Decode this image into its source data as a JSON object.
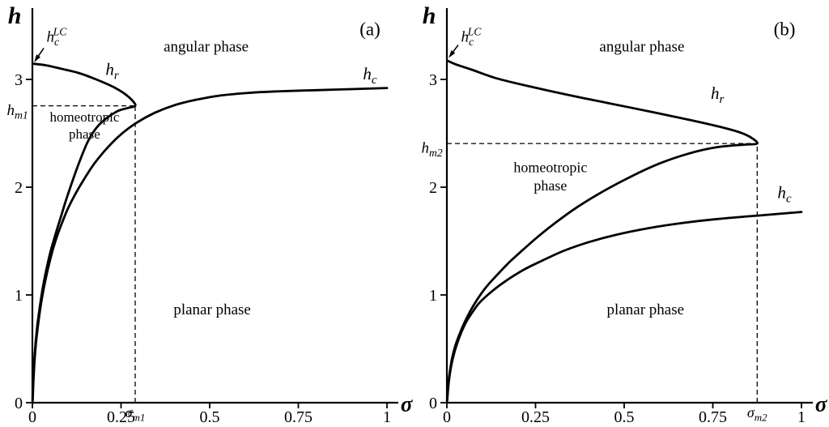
{
  "figure": {
    "background": "#ffffff",
    "ink": "#000000"
  },
  "chart_data": [
    {
      "type": "line",
      "panel": "a",
      "xlabel": "σ",
      "ylabel": "h",
      "xlim": [
        0,
        1
      ],
      "ylim": [
        0,
        3.5
      ],
      "xticks": [
        0,
        0.25,
        0.5,
        0.75,
        1
      ],
      "xtick_labels": [
        "0",
        "0.25",
        "0.5",
        "0.75",
        "1"
      ],
      "yticks": [
        0,
        1,
        2,
        3
      ],
      "ytick_labels": [
        "0",
        "1",
        "2",
        "3"
      ],
      "guides": {
        "sigma_m": 0.29,
        "h_m": 2.755
      },
      "arrow": {
        "x1": 0.032,
        "y1": 3.29,
        "x2": 0.005,
        "y2": 3.16
      },
      "series": [
        {
          "name": "h_c",
          "points": [
            [
              0.001,
              0.02
            ],
            [
              0.003,
              0.2
            ],
            [
              0.006,
              0.38
            ],
            [
              0.01,
              0.55
            ],
            [
              0.016,
              0.72
            ],
            [
              0.023,
              0.89
            ],
            [
              0.032,
              1.06
            ],
            [
              0.043,
              1.23
            ],
            [
              0.056,
              1.4
            ],
            [
              0.07,
              1.55
            ],
            [
              0.085,
              1.68
            ],
            [
              0.1,
              1.8
            ],
            [
              0.12,
              1.93
            ],
            [
              0.145,
              2.07
            ],
            [
              0.175,
              2.22
            ],
            [
              0.21,
              2.36
            ],
            [
              0.25,
              2.49
            ],
            [
              0.295,
              2.6
            ],
            [
              0.345,
              2.69
            ],
            [
              0.4,
              2.76
            ],
            [
              0.46,
              2.81
            ],
            [
              0.53,
              2.85
            ],
            [
              0.61,
              2.875
            ],
            [
              0.7,
              2.89
            ],
            [
              0.8,
              2.9
            ],
            [
              0.9,
              2.91
            ],
            [
              1.0,
              2.92
            ]
          ]
        },
        {
          "name": "h_r",
          "points": [
            [
              0.0005,
              0.02
            ],
            [
              0.002,
              0.2
            ],
            [
              0.005,
              0.38
            ],
            [
              0.009,
              0.55
            ],
            [
              0.014,
              0.72
            ],
            [
              0.021,
              0.89
            ],
            [
              0.029,
              1.06
            ],
            [
              0.039,
              1.23
            ],
            [
              0.051,
              1.4
            ],
            [
              0.064,
              1.55
            ],
            [
              0.078,
              1.7
            ],
            [
              0.092,
              1.85
            ],
            [
              0.107,
              2.0
            ],
            [
              0.122,
              2.14
            ],
            [
              0.138,
              2.28
            ],
            [
              0.156,
              2.42
            ],
            [
              0.178,
              2.54
            ],
            [
              0.205,
              2.63
            ],
            [
              0.24,
              2.705
            ],
            [
              0.27,
              2.735
            ],
            [
              0.29,
              2.755
            ],
            [
              0.283,
              2.8
            ],
            [
              0.263,
              2.86
            ],
            [
              0.228,
              2.93
            ],
            [
              0.18,
              3.0
            ],
            [
              0.13,
              3.06
            ],
            [
              0.08,
              3.1
            ],
            [
              0.04,
              3.13
            ],
            [
              0.004,
              3.145
            ]
          ]
        }
      ],
      "labels": [
        {
          "name": "y-axis-title",
          "parts": [
            {
              "t": "h",
              "it": true
            }
          ],
          "x": -0.05,
          "y": 3.52,
          "size": 30,
          "anchor": "middle",
          "bold": true
        },
        {
          "name": "x-axis-title",
          "parts": [
            {
              "t": "σ",
              "it": true
            }
          ],
          "x": 1.055,
          "y": -0.08,
          "size": 27,
          "anchor": "middle",
          "bold": true
        },
        {
          "name": "panel-letter",
          "text": "(a)",
          "x": 0.952,
          "y": 3.41,
          "size": 23,
          "anchor": "middle"
        },
        {
          "name": "hc-lc-label",
          "parts": [
            {
              "t": "h",
              "it": true
            },
            {
              "t": "c",
              "pos": "sub",
              "it": true
            },
            {
              "t": "LC",
              "pos": "sup",
              "it": true
            }
          ],
          "x": 0.04,
          "y": 3.35,
          "size": 19,
          "anchor": "start"
        },
        {
          "name": "hr-label",
          "parts": [
            {
              "t": "h",
              "it": true
            },
            {
              "t": "r",
              "pos": "sub",
              "it": true
            }
          ],
          "x": 0.225,
          "y": 3.04,
          "size": 21,
          "anchor": "middle"
        },
        {
          "name": "hc-label",
          "parts": [
            {
              "t": "h",
              "it": true
            },
            {
              "t": "c",
              "pos": "sub",
              "it": true
            }
          ],
          "x": 0.952,
          "y": 3.0,
          "size": 21,
          "anchor": "middle"
        },
        {
          "name": "angular-phase-label",
          "text": "angular phase",
          "x": 0.49,
          "y": 3.26,
          "size": 19,
          "anchor": "middle"
        },
        {
          "name": "hm1-label",
          "parts": [
            {
              "t": "h",
              "it": true
            },
            {
              "t": "m1",
              "pos": "sub",
              "it": true
            }
          ],
          "x": -0.012,
          "y": 2.67,
          "size": 19,
          "anchor": "end"
        },
        {
          "name": "homeotropic-phase-line1",
          "text": "homeotropic",
          "x": 0.147,
          "y": 2.61,
          "size": 17,
          "anchor": "middle"
        },
        {
          "name": "homeotropic-phase-line2",
          "text": "phase",
          "x": 0.147,
          "y": 2.45,
          "size": 17,
          "anchor": "middle"
        },
        {
          "name": "planar-phase-label",
          "text": "planar phase",
          "x": 0.507,
          "y": 0.82,
          "size": 19,
          "anchor": "middle"
        },
        {
          "name": "sigma-m1-label",
          "parts": [
            {
              "t": "σ",
              "it": true
            },
            {
              "t": "m1",
              "pos": "sub",
              "it": true
            }
          ],
          "x": 0.29,
          "y": -0.135,
          "size": 18,
          "anchor": "middle"
        }
      ]
    },
    {
      "type": "line",
      "panel": "b",
      "xlabel": "σ",
      "ylabel": "h",
      "xlim": [
        0,
        1
      ],
      "ylim": [
        0,
        3.5
      ],
      "xticks": [
        0,
        0.25,
        0.5,
        0.75,
        1
      ],
      "xtick_labels": [
        "0",
        "0.25",
        "0.5",
        "0.75",
        "1"
      ],
      "yticks": [
        0,
        1,
        2,
        3
      ],
      "ytick_labels": [
        "0",
        "1",
        "2",
        "3"
      ],
      "guides": {
        "sigma_m": 0.875,
        "h_m": 2.405
      },
      "arrow": {
        "x1": 0.032,
        "y1": 3.32,
        "x2": 0.005,
        "y2": 3.2
      },
      "series": [
        {
          "name": "h_c",
          "points": [
            [
              0.001,
              0.02
            ],
            [
              0.004,
              0.15
            ],
            [
              0.009,
              0.28
            ],
            [
              0.016,
              0.4
            ],
            [
              0.026,
              0.52
            ],
            [
              0.038,
              0.63
            ],
            [
              0.053,
              0.74
            ],
            [
              0.07,
              0.83
            ],
            [
              0.09,
              0.92
            ],
            [
              0.115,
              1.0
            ],
            [
              0.145,
              1.08
            ],
            [
              0.18,
              1.16
            ],
            [
              0.22,
              1.24
            ],
            [
              0.27,
              1.32
            ],
            [
              0.33,
              1.41
            ],
            [
              0.4,
              1.49
            ],
            [
              0.48,
              1.56
            ],
            [
              0.57,
              1.62
            ],
            [
              0.67,
              1.67
            ],
            [
              0.78,
              1.71
            ],
            [
              0.89,
              1.74
            ],
            [
              1.0,
              1.77
            ]
          ]
        },
        {
          "name": "h_r",
          "points": [
            [
              0.0005,
              0.02
            ],
            [
              0.003,
              0.15
            ],
            [
              0.008,
              0.28
            ],
            [
              0.014,
              0.4
            ],
            [
              0.023,
              0.52
            ],
            [
              0.035,
              0.63
            ],
            [
              0.049,
              0.74
            ],
            [
              0.066,
              0.85
            ],
            [
              0.086,
              0.96
            ],
            [
              0.11,
              1.07
            ],
            [
              0.14,
              1.18
            ],
            [
              0.175,
              1.3
            ],
            [
              0.215,
              1.42
            ],
            [
              0.26,
              1.55
            ],
            [
              0.31,
              1.68
            ],
            [
              0.37,
              1.82
            ],
            [
              0.44,
              1.96
            ],
            [
              0.52,
              2.1
            ],
            [
              0.6,
              2.22
            ],
            [
              0.68,
              2.31
            ],
            [
              0.76,
              2.37
            ],
            [
              0.84,
              2.395
            ],
            [
              0.875,
              2.405
            ],
            [
              0.858,
              2.46
            ],
            [
              0.825,
              2.51
            ],
            [
              0.77,
              2.56
            ],
            [
              0.69,
              2.62
            ],
            [
              0.59,
              2.69
            ],
            [
              0.47,
              2.77
            ],
            [
              0.35,
              2.85
            ],
            [
              0.24,
              2.93
            ],
            [
              0.14,
              3.01
            ],
            [
              0.07,
              3.09
            ],
            [
              0.025,
              3.14
            ],
            [
              0.004,
              3.17
            ]
          ]
        }
      ],
      "labels": [
        {
          "name": "y-axis-title",
          "parts": [
            {
              "t": "h",
              "it": true
            }
          ],
          "x": -0.05,
          "y": 3.52,
          "size": 30,
          "anchor": "middle",
          "bold": true
        },
        {
          "name": "x-axis-title",
          "parts": [
            {
              "t": "σ",
              "it": true
            }
          ],
          "x": 1.055,
          "y": -0.08,
          "size": 27,
          "anchor": "middle",
          "bold": true
        },
        {
          "name": "panel-letter",
          "text": "(b)",
          "x": 0.952,
          "y": 3.41,
          "size": 23,
          "anchor": "middle"
        },
        {
          "name": "hc-lc-label",
          "parts": [
            {
              "t": "h",
              "it": true
            },
            {
              "t": "c",
              "pos": "sub",
              "it": true
            },
            {
              "t": "LC",
              "pos": "sup",
              "it": true
            }
          ],
          "x": 0.04,
          "y": 3.35,
          "size": 19,
          "anchor": "start"
        },
        {
          "name": "hr-label",
          "parts": [
            {
              "t": "h",
              "it": true
            },
            {
              "t": "r",
              "pos": "sub",
              "it": true
            }
          ],
          "x": 0.763,
          "y": 2.82,
          "size": 21,
          "anchor": "middle"
        },
        {
          "name": "hc-label",
          "parts": [
            {
              "t": "h",
              "it": true
            },
            {
              "t": "c",
              "pos": "sub",
              "it": true
            }
          ],
          "x": 0.952,
          "y": 1.9,
          "size": 21,
          "anchor": "middle"
        },
        {
          "name": "angular-phase-label",
          "text": "angular phase",
          "x": 0.55,
          "y": 3.26,
          "size": 19,
          "anchor": "middle"
        },
        {
          "name": "hm2-label",
          "parts": [
            {
              "t": "h",
              "it": true
            },
            {
              "t": "m2",
              "pos": "sub",
              "it": true
            }
          ],
          "x": -0.012,
          "y": 2.32,
          "size": 19,
          "anchor": "end"
        },
        {
          "name": "homeotropic-phase-line1",
          "text": "homeotropic",
          "x": 0.292,
          "y": 2.14,
          "size": 18,
          "anchor": "middle"
        },
        {
          "name": "homeotropic-phase-line2",
          "text": "phase",
          "x": 0.292,
          "y": 1.97,
          "size": 18,
          "anchor": "middle"
        },
        {
          "name": "planar-phase-label",
          "text": "planar phase",
          "x": 0.56,
          "y": 0.82,
          "size": 19,
          "anchor": "middle"
        },
        {
          "name": "sigma-m2-label",
          "parts": [
            {
              "t": "σ",
              "it": true
            },
            {
              "t": "m2",
              "pos": "sub",
              "it": true
            }
          ],
          "x": 0.875,
          "y": -0.135,
          "size": 18,
          "anchor": "middle"
        }
      ]
    }
  ]
}
